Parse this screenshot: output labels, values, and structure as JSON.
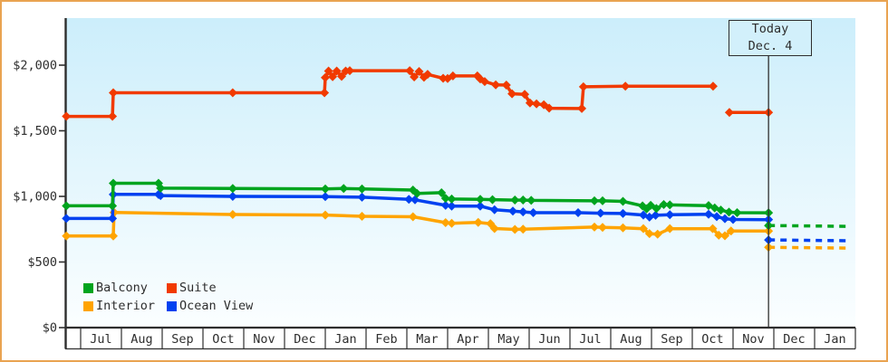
{
  "window": {
    "border_color": "#e9a351",
    "background": "#ffffff"
  },
  "chart_data": {
    "type": "line",
    "title": "",
    "xlabel": "",
    "ylabel": "",
    "grid": false,
    "x_axis": {
      "unit": "months",
      "month_labels": [
        "Jul",
        "Aug",
        "Sep",
        "Oct",
        "Nov",
        "Dec",
        "Jan",
        "Feb",
        "Mar",
        "Apr",
        "May",
        "Jun",
        "Jul",
        "Aug",
        "Sep",
        "Oct",
        "Nov",
        "Dec",
        "Jan"
      ],
      "domain_months": [
        -0.4,
        19.0
      ]
    },
    "y_axis": {
      "tick_values": [
        0,
        500,
        1000,
        1500,
        2000
      ],
      "tick_labels": [
        "$0",
        "$500",
        "$1,000",
        "$1,500",
        "$2,000"
      ],
      "range": [
        0,
        2350
      ]
    },
    "today_marker": {
      "line1": "Today",
      "line2": "Dec. 4",
      "x_month": 16.87
    },
    "legend": {
      "position": "bottom-left-inside",
      "items": [
        {
          "label": "Balcony",
          "color": "#00a41e"
        },
        {
          "label": "Suite",
          "color": "#f13a00"
        },
        {
          "label": "Interior",
          "color": "#ffa400"
        },
        {
          "label": "Ocean View",
          "color": "#0041f0"
        }
      ]
    },
    "series": [
      {
        "name": "Interior",
        "color": "#ffa400",
        "segments": [
          [
            [
              -0.35,
              698
            ],
            [
              0.8,
              698
            ],
            [
              0.82,
              878
            ],
            [
              3.73,
              862
            ],
            [
              6.0,
              858
            ],
            [
              6.9,
              848
            ],
            [
              8.15,
              845
            ],
            [
              8.95,
              800
            ],
            [
              9.1,
              795
            ],
            [
              9.75,
              802
            ],
            [
              10.05,
              792
            ],
            [
              10.15,
              755
            ],
            [
              10.65,
              748
            ],
            [
              10.85,
              750
            ],
            [
              12.6,
              766
            ],
            [
              12.8,
              764
            ],
            [
              13.3,
              760
            ],
            [
              13.8,
              754
            ],
            [
              13.95,
              716
            ],
            [
              14.15,
              712
            ],
            [
              14.45,
              754
            ],
            [
              15.5,
              754
            ],
            [
              15.65,
              704
            ],
            [
              15.8,
              700
            ],
            [
              15.95,
              736
            ],
            [
              16.87,
              736
            ]
          ]
        ],
        "forecast": [
          [
            16.87,
            612
          ],
          [
            18.8,
            606
          ]
        ]
      },
      {
        "name": "Ocean View",
        "color": "#0041f0",
        "segments": [
          [
            [
              -0.35,
              832
            ],
            [
              0.78,
              832
            ],
            [
              0.8,
              1015
            ],
            [
              1.91,
              1015
            ],
            [
              1.96,
              1006
            ],
            [
              3.73,
              1000
            ],
            [
              6.0,
              998
            ],
            [
              6.9,
              994
            ],
            [
              8.05,
              978
            ],
            [
              8.2,
              974
            ],
            [
              8.95,
              932
            ],
            [
              9.1,
              926
            ],
            [
              9.8,
              926
            ],
            [
              10.15,
              898
            ],
            [
              10.6,
              888
            ],
            [
              10.85,
              882
            ],
            [
              11.1,
              876
            ],
            [
              12.2,
              876
            ],
            [
              12.75,
              872
            ],
            [
              13.3,
              870
            ],
            [
              13.8,
              858
            ],
            [
              13.95,
              842
            ],
            [
              14.1,
              856
            ],
            [
              14.45,
              860
            ],
            [
              15.4,
              864
            ],
            [
              15.6,
              846
            ],
            [
              15.8,
              830
            ],
            [
              16.0,
              824
            ],
            [
              16.87,
              823
            ]
          ]
        ],
        "forecast": [
          [
            16.87,
            668
          ],
          [
            18.8,
            662
          ]
        ]
      },
      {
        "name": "Balcony",
        "color": "#00a41e",
        "segments": [
          [
            [
              -0.35,
              928
            ],
            [
              0.78,
              928
            ],
            [
              0.8,
              1100
            ],
            [
              1.91,
              1100
            ],
            [
              1.96,
              1063
            ],
            [
              3.73,
              1060
            ],
            [
              6.0,
              1057
            ],
            [
              6.45,
              1060
            ],
            [
              6.9,
              1057
            ],
            [
              8.15,
              1048
            ],
            [
              8.25,
              1022
            ],
            [
              8.85,
              1028
            ],
            [
              8.95,
              985
            ],
            [
              9.1,
              980
            ],
            [
              9.8,
              978
            ],
            [
              10.1,
              975
            ],
            [
              10.65,
              972
            ],
            [
              10.85,
              972
            ],
            [
              11.05,
              970
            ],
            [
              12.6,
              966
            ],
            [
              12.8,
              966
            ],
            [
              13.3,
              962
            ],
            [
              13.78,
              928
            ],
            [
              13.88,
              905
            ],
            [
              13.98,
              932
            ],
            [
              14.12,
              908
            ],
            [
              14.3,
              938
            ],
            [
              14.45,
              935
            ],
            [
              15.4,
              930
            ],
            [
              15.55,
              912
            ],
            [
              15.7,
              896
            ],
            [
              15.9,
              880
            ],
            [
              16.1,
              876
            ],
            [
              16.87,
              875
            ]
          ]
        ],
        "forecast": [
          [
            16.87,
            778
          ],
          [
            18.8,
            772
          ]
        ]
      },
      {
        "name": "Suite",
        "color": "#f13a00",
        "segments": [
          [
            [
              -0.35,
              1610
            ],
            [
              0.78,
              1610
            ],
            [
              0.8,
              1790
            ],
            [
              3.73,
              1790
            ],
            [
              5.98,
              1790
            ],
            [
              6.0,
              1905
            ],
            [
              6.08,
              1955
            ],
            [
              6.18,
              1912
            ],
            [
              6.28,
              1955
            ],
            [
              6.4,
              1915
            ],
            [
              6.5,
              1955
            ],
            [
              6.6,
              1958
            ],
            [
              8.07,
              1958
            ],
            [
              8.18,
              1910
            ],
            [
              8.3,
              1952
            ],
            [
              8.42,
              1908
            ],
            [
              8.51,
              1930
            ],
            [
              8.89,
              1900
            ],
            [
              9.0,
              1898
            ],
            [
              9.13,
              1918
            ],
            [
              9.73,
              1918
            ],
            [
              9.8,
              1895
            ],
            [
              9.91,
              1875
            ],
            [
              10.18,
              1850
            ],
            [
              10.44,
              1848
            ],
            [
              10.58,
              1782
            ],
            [
              10.89,
              1778
            ],
            [
              11.02,
              1712
            ],
            [
              11.18,
              1705
            ],
            [
              11.36,
              1698
            ],
            [
              11.49,
              1672
            ],
            [
              12.29,
              1670
            ],
            [
              12.33,
              1835
            ],
            [
              13.36,
              1840
            ],
            [
              15.51,
              1840
            ]
          ],
          [
            [
              15.91,
              1640
            ],
            [
              16.87,
              1640
            ]
          ]
        ],
        "forecast": null
      }
    ],
    "style": {
      "plot_gradient_top": "#cceefb",
      "plot_gradient_bottom": "#fbfeff",
      "axis_color": "#2e2e2e",
      "text_color": "#2e2e2e"
    }
  }
}
